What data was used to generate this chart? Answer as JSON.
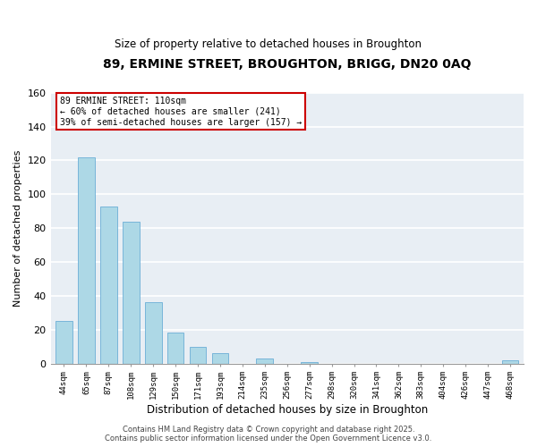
{
  "title": "89, ERMINE STREET, BROUGHTON, BRIGG, DN20 0AQ",
  "subtitle": "Size of property relative to detached houses in Broughton",
  "xlabel": "Distribution of detached houses by size in Broughton",
  "ylabel": "Number of detached properties",
  "categories": [
    "44sqm",
    "65sqm",
    "87sqm",
    "108sqm",
    "129sqm",
    "150sqm",
    "171sqm",
    "193sqm",
    "214sqm",
    "235sqm",
    "256sqm",
    "277sqm",
    "298sqm",
    "320sqm",
    "341sqm",
    "362sqm",
    "383sqm",
    "404sqm",
    "426sqm",
    "447sqm",
    "468sqm"
  ],
  "values": [
    25,
    122,
    93,
    84,
    36,
    18,
    10,
    6,
    0,
    3,
    0,
    1,
    0,
    0,
    0,
    0,
    0,
    0,
    0,
    0,
    2
  ],
  "bar_color": "#add8e6",
  "bar_edge_color": "#6baed6",
  "annotation_line1": "89 ERMINE STREET: 110sqm",
  "annotation_line2": "← 60% of detached houses are smaller (241)",
  "annotation_line3": "39% of semi-detached houses are larger (157) →",
  "annotation_box_edge_color": "#cc0000",
  "ylim": [
    0,
    160
  ],
  "yticks": [
    0,
    20,
    40,
    60,
    80,
    100,
    120,
    140,
    160
  ],
  "background_color": "#ffffff",
  "plot_bg_color": "#e8eef4",
  "grid_color": "#ffffff",
  "footer_line1": "Contains HM Land Registry data © Crown copyright and database right 2025.",
  "footer_line2": "Contains public sector information licensed under the Open Government Licence v3.0."
}
